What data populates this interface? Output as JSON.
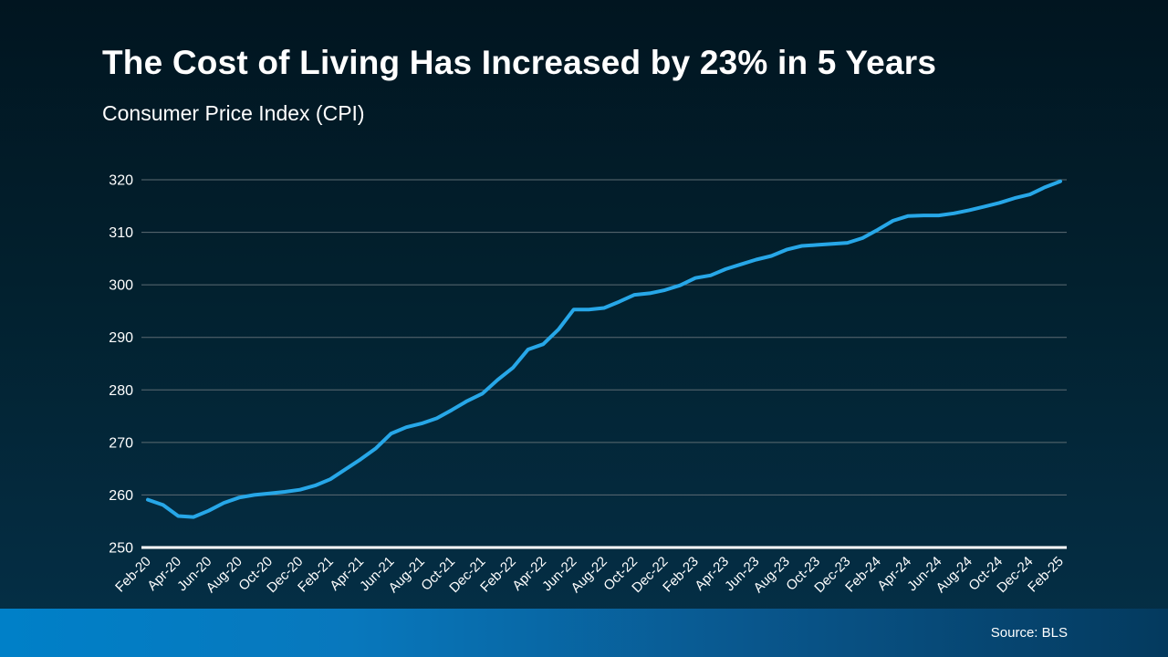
{
  "slide": {
    "title": "The Cost of Living Has Increased by 23% in 5 Years",
    "subtitle": "Consumer Price Index (CPI)",
    "source": "Source: BLS"
  },
  "colors": {
    "line": "#27a7e8",
    "gridline": "#5d6b73",
    "baseline_axis": "#ffffff",
    "text": "#ffffff",
    "footer_gradient_left": "#0080c8",
    "footer_gradient_right": "#043a5e",
    "background_top": "#011520",
    "background_bottom": "#053048"
  },
  "chart_data": {
    "type": "line",
    "title": "Consumer Price Index (CPI)",
    "series_name": "CPI",
    "xlabel": "",
    "ylabel": "",
    "ylim": [
      250,
      320
    ],
    "y_ticks": [
      250,
      260,
      270,
      280,
      290,
      300,
      310,
      320
    ],
    "grid": true,
    "x": [
      "Feb-20",
      "Mar-20",
      "Apr-20",
      "May-20",
      "Jun-20",
      "Jul-20",
      "Aug-20",
      "Sep-20",
      "Oct-20",
      "Nov-20",
      "Dec-20",
      "Jan-21",
      "Feb-21",
      "Mar-21",
      "Apr-21",
      "May-21",
      "Jun-21",
      "Jul-21",
      "Aug-21",
      "Sep-21",
      "Oct-21",
      "Nov-21",
      "Dec-21",
      "Jan-22",
      "Feb-22",
      "Mar-22",
      "Apr-22",
      "May-22",
      "Jun-22",
      "Jul-22",
      "Aug-22",
      "Sep-22",
      "Oct-22",
      "Nov-22",
      "Dec-22",
      "Jan-23",
      "Feb-23",
      "Mar-23",
      "Apr-23",
      "May-23",
      "Jun-23",
      "Jul-23",
      "Aug-23",
      "Sep-23",
      "Oct-23",
      "Nov-23",
      "Dec-23",
      "Jan-24",
      "Feb-24",
      "Mar-24",
      "Apr-24",
      "May-24",
      "Jun-24",
      "Jul-24",
      "Aug-24",
      "Sep-24",
      "Oct-24",
      "Nov-24",
      "Dec-24",
      "Jan-25",
      "Feb-25"
    ],
    "values": [
      259.1,
      258.1,
      256.0,
      255.8,
      257.0,
      258.5,
      259.5,
      260.0,
      260.3,
      260.6,
      261.0,
      261.8,
      263.0,
      264.9,
      266.8,
      268.9,
      271.7,
      272.9,
      273.6,
      274.6,
      276.2,
      277.9,
      279.3,
      281.9,
      284.2,
      287.7,
      288.7,
      291.5,
      295.3,
      295.3,
      295.6,
      296.8,
      298.1,
      298.4,
      299.0,
      299.9,
      301.3,
      301.8,
      303.0,
      303.9,
      304.8,
      305.5,
      306.7,
      307.4,
      307.6,
      307.8,
      308.0,
      308.9,
      310.5,
      312.2,
      313.1,
      313.2,
      313.2,
      313.6,
      314.2,
      314.9,
      315.6,
      316.5,
      317.2,
      318.6,
      319.7
    ],
    "x_tick_labels": [
      "Feb-20",
      "Apr-20",
      "Jun-20",
      "Aug-20",
      "Oct-20",
      "Dec-20",
      "Feb-21",
      "Apr-21",
      "Jun-21",
      "Aug-21",
      "Oct-21",
      "Dec-21",
      "Feb-22",
      "Apr-22",
      "Jun-22",
      "Aug-22",
      "Oct-22",
      "Dec-22",
      "Feb-23",
      "Apr-23",
      "Jun-23",
      "Aug-23",
      "Oct-23",
      "Dec-23",
      "Feb-24",
      "Apr-24",
      "Jun-24",
      "Aug-24",
      "Oct-24",
      "Dec-24",
      "Feb-25"
    ],
    "legend_position": "none"
  }
}
